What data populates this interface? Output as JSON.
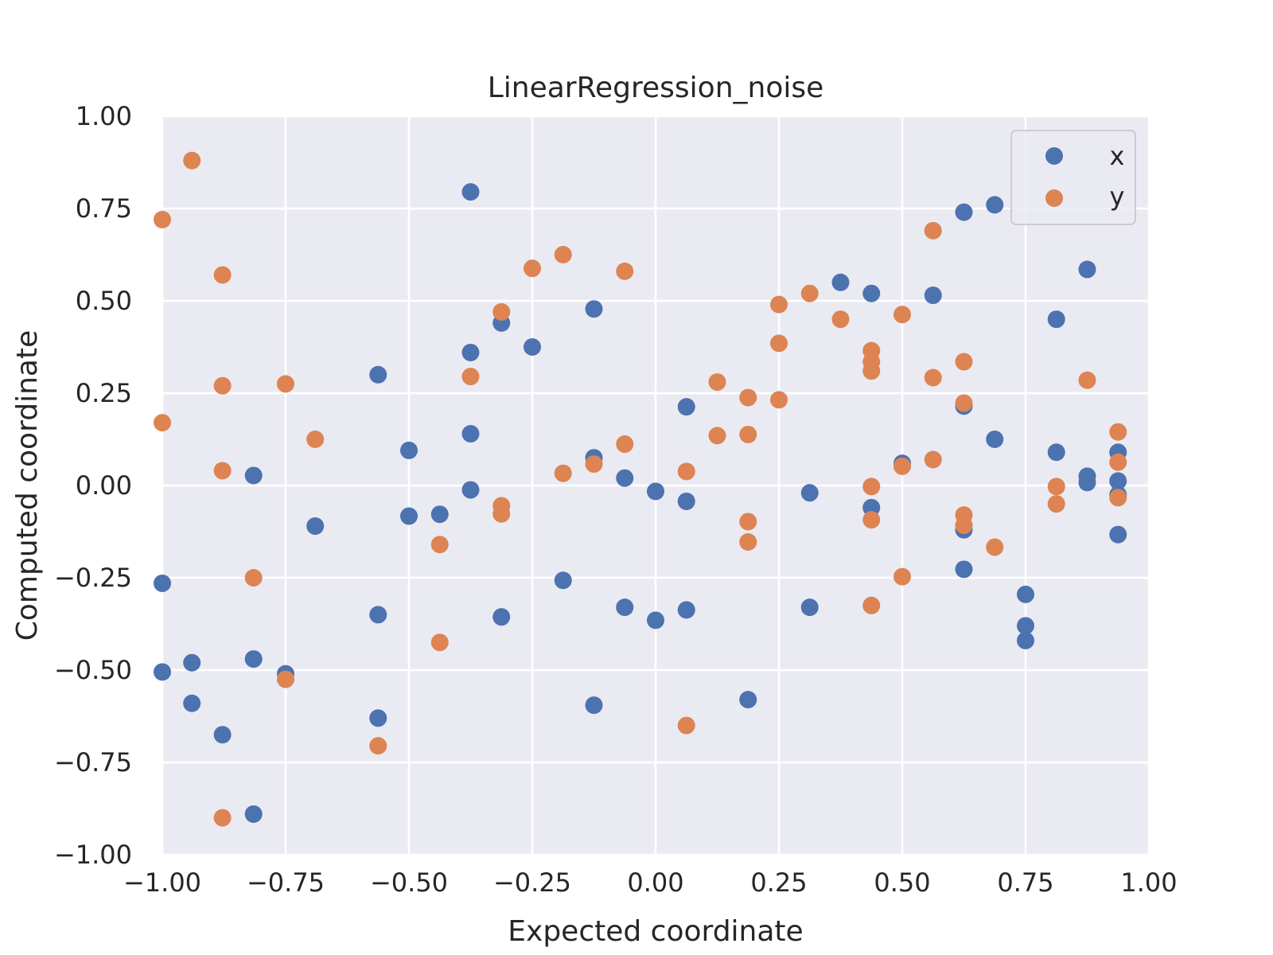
{
  "chart_data": {
    "type": "scatter",
    "title": "LinearRegression_noise",
    "xlabel": "Expected coordinate",
    "ylabel": "Computed coordinate",
    "xlim": [
      -1.0,
      1.0
    ],
    "ylim": [
      -1.0,
      1.0
    ],
    "x_ticks": [
      -1.0,
      -0.75,
      -0.5,
      -0.25,
      0.0,
      0.25,
      0.5,
      0.75,
      1.0
    ],
    "y_ticks": [
      -1.0,
      -0.75,
      -0.5,
      -0.25,
      0.0,
      0.25,
      0.5,
      0.75,
      1.0
    ],
    "x_tick_labels": [
      "−1.00",
      "−0.75",
      "−0.50",
      "−0.25",
      "0.00",
      "0.25",
      "0.50",
      "0.75",
      "1.00"
    ],
    "y_tick_labels": [
      "−1.00",
      "−0.75",
      "−0.50",
      "−0.25",
      "0.00",
      "0.25",
      "0.50",
      "0.75",
      "1.00"
    ],
    "grid": true,
    "legend_position": "top-right",
    "background": "#eaeaf2",
    "series": [
      {
        "name": "x",
        "color": "#4c72b0",
        "points": [
          [
            -1.0,
            -0.265
          ],
          [
            -1.0,
            -0.505
          ],
          [
            -0.94,
            -0.48
          ],
          [
            -0.94,
            -0.59
          ],
          [
            -0.878,
            -0.675
          ],
          [
            -0.815,
            0.027
          ],
          [
            -0.815,
            -0.47
          ],
          [
            -0.815,
            -0.89
          ],
          [
            -0.75,
            -0.51
          ],
          [
            -0.69,
            -0.11
          ],
          [
            -0.5625,
            0.3
          ],
          [
            -0.5625,
            -0.35
          ],
          [
            -0.5625,
            -0.63
          ],
          [
            -0.5,
            0.095
          ],
          [
            -0.5,
            -0.083
          ],
          [
            -0.4375,
            -0.078
          ],
          [
            -0.375,
            0.795
          ],
          [
            -0.375,
            0.36
          ],
          [
            -0.375,
            0.14
          ],
          [
            -0.375,
            -0.012
          ],
          [
            -0.3125,
            0.44
          ],
          [
            -0.3125,
            -0.356
          ],
          [
            -0.25,
            0.375
          ],
          [
            -0.1875,
            -0.257
          ],
          [
            -0.125,
            0.478
          ],
          [
            -0.125,
            0.075
          ],
          [
            -0.125,
            -0.595
          ],
          [
            -0.0625,
            0.02
          ],
          [
            -0.0625,
            -0.33
          ],
          [
            0.0,
            -0.016
          ],
          [
            0.0,
            -0.365
          ],
          [
            0.0625,
            0.213
          ],
          [
            0.0625,
            -0.043
          ],
          [
            0.0625,
            -0.337
          ],
          [
            0.1875,
            -0.58
          ],
          [
            0.3125,
            -0.02
          ],
          [
            0.3125,
            -0.33
          ],
          [
            0.375,
            0.55
          ],
          [
            0.4375,
            0.52
          ],
          [
            0.4375,
            -0.06
          ],
          [
            0.5,
            0.06
          ],
          [
            0.5625,
            0.515
          ],
          [
            0.625,
            0.74
          ],
          [
            0.625,
            0.215
          ],
          [
            0.625,
            -0.12
          ],
          [
            0.625,
            -0.227
          ],
          [
            0.6875,
            0.76
          ],
          [
            0.6875,
            0.125
          ],
          [
            0.75,
            -0.295
          ],
          [
            0.75,
            -0.38
          ],
          [
            0.75,
            -0.42
          ],
          [
            0.8125,
            0.45
          ],
          [
            0.8125,
            0.09
          ],
          [
            0.875,
            0.585
          ],
          [
            0.875,
            0.025
          ],
          [
            0.875,
            0.008
          ],
          [
            0.9375,
            0.09
          ],
          [
            0.9375,
            0.012
          ],
          [
            0.9375,
            -0.025
          ],
          [
            0.9375,
            -0.133
          ]
        ]
      },
      {
        "name": "y",
        "color": "#dd8452",
        "points": [
          [
            -1.0,
            0.72
          ],
          [
            -1.0,
            0.17
          ],
          [
            -0.94,
            0.88
          ],
          [
            -0.878,
            0.57
          ],
          [
            -0.878,
            0.27
          ],
          [
            -0.878,
            0.04
          ],
          [
            -0.878,
            -0.9
          ],
          [
            -0.815,
            -0.25
          ],
          [
            -0.75,
            0.275
          ],
          [
            -0.75,
            -0.525
          ],
          [
            -0.69,
            0.125
          ],
          [
            -0.5625,
            -0.705
          ],
          [
            -0.4375,
            -0.16
          ],
          [
            -0.4375,
            -0.425
          ],
          [
            -0.375,
            0.295
          ],
          [
            -0.3125,
            0.47
          ],
          [
            -0.3125,
            -0.055
          ],
          [
            -0.3125,
            -0.077
          ],
          [
            -0.25,
            0.588
          ],
          [
            -0.1875,
            0.625
          ],
          [
            -0.1875,
            0.033
          ],
          [
            -0.125,
            0.058
          ],
          [
            -0.0625,
            0.58
          ],
          [
            -0.0625,
            0.112
          ],
          [
            0.0625,
            0.038
          ],
          [
            0.0625,
            -0.65
          ],
          [
            0.125,
            0.28
          ],
          [
            0.125,
            0.135
          ],
          [
            0.1875,
            0.238
          ],
          [
            0.1875,
            0.138
          ],
          [
            0.1875,
            -0.098
          ],
          [
            0.1875,
            -0.153
          ],
          [
            0.25,
            0.49
          ],
          [
            0.25,
            0.385
          ],
          [
            0.25,
            0.232
          ],
          [
            0.3125,
            0.52
          ],
          [
            0.375,
            0.45
          ],
          [
            0.4375,
            0.365
          ],
          [
            0.4375,
            0.335
          ],
          [
            0.4375,
            0.31
          ],
          [
            0.4375,
            -0.003
          ],
          [
            0.4375,
            -0.093
          ],
          [
            0.4375,
            -0.325
          ],
          [
            0.5,
            0.463
          ],
          [
            0.5,
            0.052
          ],
          [
            0.5,
            -0.247
          ],
          [
            0.5625,
            0.69
          ],
          [
            0.5625,
            0.292
          ],
          [
            0.5625,
            0.07
          ],
          [
            0.625,
            0.335
          ],
          [
            0.625,
            0.223
          ],
          [
            0.625,
            -0.08
          ],
          [
            0.625,
            -0.108
          ],
          [
            0.6875,
            -0.167
          ],
          [
            0.8125,
            -0.003
          ],
          [
            0.8125,
            -0.05
          ],
          [
            0.875,
            0.285
          ],
          [
            0.9375,
            0.145
          ],
          [
            0.9375,
            0.063
          ],
          [
            0.9375,
            -0.033
          ]
        ]
      }
    ]
  }
}
